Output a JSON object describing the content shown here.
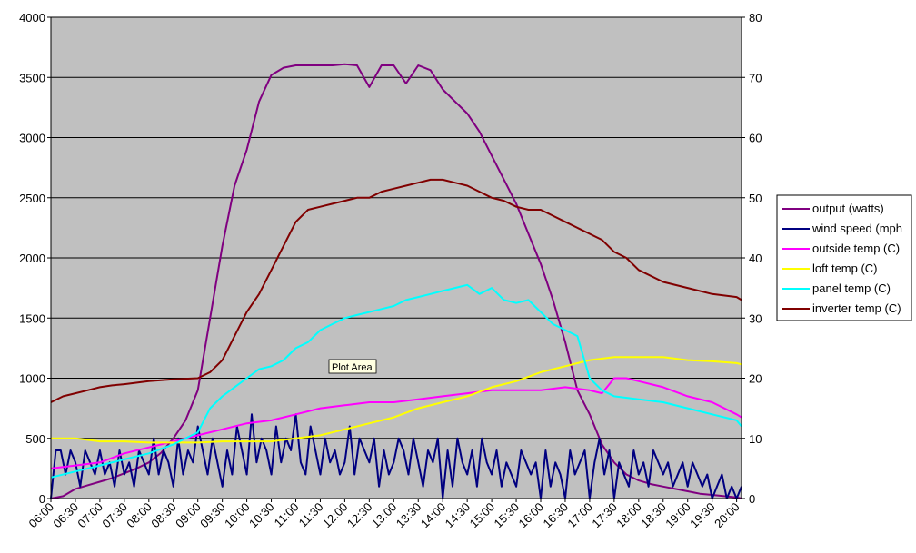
{
  "chart_data": {
    "type": "line",
    "title": "",
    "xlabel": "",
    "ylabel": "",
    "x_ticks": [
      "06:00",
      "06:30",
      "07:00",
      "07:30",
      "08:00",
      "08:30",
      "09:00",
      "09:30",
      "10:00",
      "10:30",
      "11:00",
      "11:30",
      "12:00",
      "12:30",
      "13:00",
      "13:30",
      "14:00",
      "14:30",
      "15:00",
      "15:30",
      "16:00",
      "16:30",
      "17:00",
      "17:30",
      "18:00",
      "18:30",
      "19:00",
      "19:30",
      "20:00"
    ],
    "y_left_ticks": [
      "0",
      "500",
      "1000",
      "1500",
      "2000",
      "2500",
      "3000",
      "3500",
      "4000"
    ],
    "y_right_ticks": [
      "0",
      "10",
      "20",
      "30",
      "40",
      "50",
      "60",
      "70",
      "80"
    ],
    "ylim_left": [
      0,
      4000
    ],
    "ylim_right": [
      0,
      80
    ],
    "grid": "horizontal",
    "plot_background": "#c0c0c0",
    "legend_position": "right",
    "tooltip": "Plot Area",
    "series": [
      {
        "name": "output (watts)",
        "color": "#800080",
        "axis": "left",
        "x": [
          6.0,
          6.25,
          6.5,
          6.75,
          7.0,
          7.25,
          7.5,
          7.75,
          8.0,
          8.25,
          8.5,
          8.75,
          9.0,
          9.25,
          9.5,
          9.75,
          10.0,
          10.25,
          10.5,
          10.75,
          11.0,
          11.25,
          11.5,
          11.75,
          12.0,
          12.25,
          12.5,
          12.75,
          13.0,
          13.25,
          13.5,
          13.75,
          14.0,
          14.25,
          14.5,
          14.75,
          15.0,
          15.25,
          15.5,
          15.75,
          16.0,
          16.25,
          16.5,
          16.75,
          17.0,
          17.25,
          17.5,
          17.75,
          18.0,
          18.25,
          18.5,
          18.75,
          19.0,
          19.25,
          19.5,
          19.75,
          20.0,
          20.1
        ],
        "y": [
          0,
          20,
          80,
          110,
          140,
          170,
          210,
          250,
          300,
          380,
          500,
          650,
          900,
          1500,
          2100,
          2600,
          2900,
          3300,
          3520,
          3580,
          3600,
          3600,
          3600,
          3600,
          3610,
          3600,
          3420,
          3600,
          3600,
          3450,
          3600,
          3560,
          3400,
          3300,
          3200,
          3050,
          2850,
          2650,
          2450,
          2200,
          1950,
          1650,
          1300,
          900,
          700,
          450,
          300,
          200,
          150,
          120,
          100,
          80,
          60,
          40,
          30,
          20,
          10,
          0
        ]
      },
      {
        "name": "wind speed (mph",
        "color": "#000080",
        "axis": "right",
        "x": [
          6.0,
          6.1,
          6.2,
          6.3,
          6.4,
          6.5,
          6.6,
          6.7,
          6.8,
          6.9,
          7.0,
          7.1,
          7.2,
          7.3,
          7.4,
          7.5,
          7.6,
          7.7,
          7.8,
          7.9,
          8.0,
          8.1,
          8.2,
          8.3,
          8.4,
          8.5,
          8.6,
          8.7,
          8.8,
          8.9,
          9.0,
          9.1,
          9.2,
          9.3,
          9.4,
          9.5,
          9.6,
          9.7,
          9.8,
          9.9,
          10.0,
          10.1,
          10.2,
          10.3,
          10.4,
          10.5,
          10.6,
          10.7,
          10.8,
          10.9,
          11.0,
          11.1,
          11.2,
          11.3,
          11.4,
          11.5,
          11.6,
          11.7,
          11.8,
          11.9,
          12.0,
          12.1,
          12.2,
          12.3,
          12.4,
          12.5,
          12.6,
          12.7,
          12.8,
          12.9,
          13.0,
          13.1,
          13.2,
          13.3,
          13.4,
          13.5,
          13.6,
          13.7,
          13.8,
          13.9,
          14.0,
          14.1,
          14.2,
          14.3,
          14.4,
          14.5,
          14.6,
          14.7,
          14.8,
          14.9,
          15.0,
          15.1,
          15.2,
          15.3,
          15.4,
          15.5,
          15.6,
          15.7,
          15.8,
          15.9,
          16.0,
          16.1,
          16.2,
          16.3,
          16.4,
          16.5,
          16.6,
          16.7,
          16.8,
          16.9,
          17.0,
          17.1,
          17.2,
          17.3,
          17.4,
          17.5,
          17.6,
          17.7,
          17.8,
          17.9,
          18.0,
          18.1,
          18.2,
          18.3,
          18.4,
          18.5,
          18.6,
          18.7,
          18.8,
          18.9,
          19.0,
          19.1,
          19.2,
          19.3,
          19.4,
          19.5,
          19.6,
          19.7,
          19.8,
          19.9,
          20.0,
          20.1
        ],
        "y": [
          0,
          8,
          8,
          4,
          8,
          6,
          2,
          8,
          6,
          4,
          8,
          4,
          6,
          2,
          8,
          4,
          6,
          2,
          8,
          6,
          4,
          10,
          4,
          8,
          6,
          2,
          10,
          4,
          8,
          6,
          12,
          8,
          4,
          10,
          6,
          2,
          8,
          4,
          12,
          8,
          4,
          14,
          6,
          10,
          8,
          4,
          12,
          6,
          10,
          8,
          14,
          6,
          4,
          12,
          8,
          4,
          10,
          6,
          8,
          4,
          6,
          12,
          4,
          10,
          8,
          6,
          10,
          2,
          8,
          4,
          6,
          10,
          8,
          4,
          10,
          6,
          2,
          8,
          6,
          10,
          0,
          8,
          2,
          10,
          6,
          4,
          8,
          2,
          10,
          6,
          4,
          8,
          2,
          6,
          4,
          2,
          8,
          6,
          4,
          6,
          0,
          8,
          2,
          6,
          4,
          0,
          8,
          4,
          6,
          8,
          0,
          6,
          10,
          4,
          8,
          0,
          6,
          4,
          2,
          8,
          4,
          6,
          2,
          8,
          6,
          4,
          6,
          2,
          4,
          6,
          2,
          6,
          4,
          2,
          4,
          0,
          2,
          4,
          0,
          2,
          0,
          2
        ]
      },
      {
        "name": "outside temp (C)",
        "color": "#ff00ff",
        "axis": "right",
        "x": [
          6.0,
          6.5,
          7.0,
          7.5,
          8.0,
          8.5,
          9.0,
          9.5,
          10.0,
          10.5,
          11.0,
          11.5,
          12.0,
          12.5,
          13.0,
          13.5,
          14.0,
          14.5,
          15.0,
          15.5,
          16.0,
          16.5,
          17.0,
          17.25,
          17.5,
          17.75,
          18.0,
          18.5,
          19.0,
          19.5,
          20.0,
          20.1
        ],
        "y": [
          5,
          5.5,
          6,
          7.5,
          8.5,
          9.5,
          10.5,
          11.5,
          12.5,
          13,
          14,
          15,
          15.5,
          16,
          16,
          16.5,
          17,
          17.5,
          18,
          18,
          18,
          18.5,
          18,
          17.5,
          20,
          20,
          19.5,
          18.5,
          17,
          16,
          14,
          13.5
        ]
      },
      {
        "name": "loft temp (C)",
        "color": "#ffff00",
        "axis": "right",
        "x": [
          6.0,
          6.5,
          7.0,
          7.5,
          8.0,
          8.5,
          9.0,
          9.5,
          10.0,
          10.5,
          11.0,
          11.5,
          12.0,
          12.5,
          13.0,
          13.5,
          14.0,
          14.5,
          15.0,
          15.5,
          16.0,
          16.5,
          17.0,
          17.5,
          18.0,
          18.5,
          19.0,
          19.5,
          20.0,
          20.1
        ],
        "y": [
          10,
          10,
          9.5,
          9.5,
          9.3,
          9.3,
          9.3,
          9.5,
          9.5,
          9.5,
          10,
          10.5,
          11.5,
          12.5,
          13.5,
          15,
          16,
          17,
          18.5,
          19.5,
          21,
          22,
          23,
          23.5,
          23.5,
          23.5,
          23,
          22.8,
          22.5,
          22.3
        ]
      },
      {
        "name": "panel temp (C)",
        "color": "#00ffff",
        "axis": "right",
        "x": [
          6.0,
          6.5,
          7.0,
          7.5,
          8.0,
          8.5,
          9.0,
          9.25,
          9.5,
          9.75,
          10.0,
          10.25,
          10.5,
          10.75,
          11.0,
          11.25,
          11.5,
          11.75,
          12.0,
          12.25,
          12.5,
          12.75,
          13.0,
          13.25,
          13.5,
          13.75,
          14.0,
          14.25,
          14.5,
          14.75,
          15.0,
          15.25,
          15.5,
          15.75,
          16.0,
          16.25,
          16.5,
          16.75,
          17.0,
          17.25,
          17.5,
          18.0,
          18.5,
          19.0,
          19.5,
          20.0,
          20.1
        ],
        "y": [
          3.5,
          4.5,
          5.5,
          6.5,
          7.5,
          9,
          11,
          15,
          17,
          18.5,
          20,
          21.5,
          22,
          23,
          25,
          26,
          28,
          29,
          30,
          30.5,
          31,
          31.5,
          32,
          33,
          33.5,
          34,
          34.5,
          35,
          35.5,
          34,
          35,
          33,
          32.5,
          33,
          31,
          29,
          28,
          27,
          20,
          18,
          17,
          16.5,
          16,
          15,
          14,
          13,
          12
        ]
      },
      {
        "name": "inverter temp (C)",
        "color": "#800000",
        "axis": "right",
        "x": [
          6.0,
          6.25,
          6.5,
          6.75,
          7.0,
          7.25,
          7.5,
          8.0,
          8.5,
          9.0,
          9.25,
          9.5,
          9.75,
          10.0,
          10.25,
          10.5,
          10.75,
          11.0,
          11.25,
          11.5,
          11.75,
          12.0,
          12.25,
          12.5,
          12.75,
          13.0,
          13.25,
          13.5,
          13.75,
          14.0,
          14.25,
          14.5,
          14.75,
          15.0,
          15.25,
          15.5,
          15.75,
          16.0,
          16.25,
          16.5,
          16.75,
          17.0,
          17.25,
          17.5,
          17.75,
          18.0,
          18.5,
          19.0,
          19.5,
          20.0,
          20.1
        ],
        "y": [
          16,
          17,
          17.5,
          18,
          18.5,
          18.8,
          19,
          19.5,
          19.8,
          20,
          21,
          23,
          27,
          31,
          34,
          38,
          42,
          46,
          48,
          48.5,
          49,
          49.5,
          50,
          50,
          51,
          51.5,
          52,
          52.5,
          53,
          53,
          52.5,
          52,
          51,
          50,
          49.5,
          48.5,
          48,
          48,
          47,
          46,
          45,
          44,
          43,
          41,
          40,
          38,
          36,
          35,
          34,
          33.5,
          33
        ]
      }
    ]
  }
}
